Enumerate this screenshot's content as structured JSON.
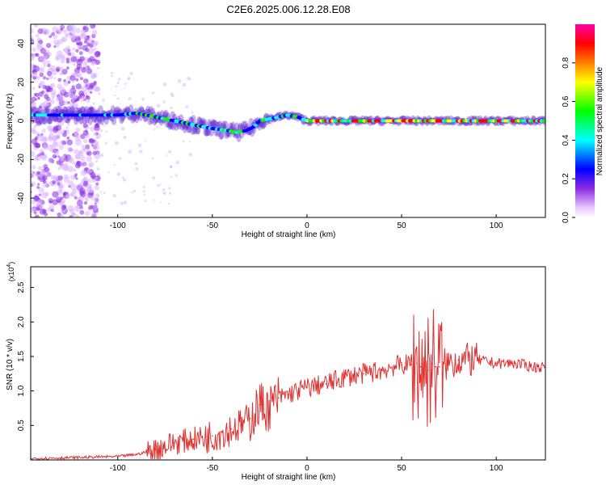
{
  "title": "C2E6.2025.006.12.28.E08",
  "colors": {
    "accent": "#e03030",
    "spectrum_stops": [
      "#ffffff",
      "#e8c8ff",
      "#8a2be2",
      "#0000ff",
      "#00ffff",
      "#00ff00",
      "#ffff00",
      "#ff8000",
      "#ff0000",
      "#ff00aa"
    ]
  },
  "chart_data": [
    {
      "type": "heatmap",
      "title": "",
      "xlabel": "Height of straight line (km)",
      "ylabel": "Frequency (Hz)",
      "xlim": [
        -146,
        126
      ],
      "ylim": [
        -50,
        50
      ],
      "xticks": [
        -100,
        -50,
        0,
        50,
        100
      ],
      "yticks": [
        -40,
        -20,
        0,
        20,
        40
      ],
      "xtick_labels": [
        "-100",
        "-50",
        "0",
        "50",
        "100"
      ],
      "ytick_labels": [
        "-40",
        "-20",
        "0",
        "20",
        "40"
      ],
      "grid": false,
      "track": {
        "x": [
          -146,
          -120,
          -100,
          -90,
          -80,
          -70,
          -60,
          -50,
          -42,
          -37,
          -32,
          -28,
          -25,
          -20,
          -15,
          -10,
          -5,
          0,
          5,
          20,
          40,
          60,
          80,
          100,
          126
        ],
        "y": [
          3,
          3,
          3,
          4,
          2,
          0,
          -2,
          -4,
          -5,
          -6,
          -5,
          -3,
          0,
          1,
          2,
          3,
          2,
          0,
          0,
          0,
          0,
          0,
          0,
          0,
          0
        ]
      },
      "colorbar": {
        "label": "Normalized spectral amplitude",
        "range": [
          0,
          1
        ],
        "ticks": [
          0.0,
          0.2,
          0.4,
          0.6,
          0.8
        ],
        "tick_labels": [
          "0.0",
          "0.2",
          "0.4",
          "0.6",
          "0.8"
        ]
      }
    },
    {
      "type": "line",
      "title": "",
      "xlabel": "Height of straight line (km)",
      "ylabel": "SNR (10 * v/v)",
      "y_multiplier": "(x10",
      "y_multiplier_exp": "4",
      "y_multiplier_close": ")",
      "xlim": [
        -146,
        126
      ],
      "ylim": [
        0,
        2.8
      ],
      "xticks": [
        -100,
        -50,
        0,
        50,
        100
      ],
      "yticks": [
        0.5,
        1.0,
        1.5,
        2.0,
        2.5
      ],
      "xtick_labels": [
        "-100",
        "-50",
        "0",
        "50",
        "100"
      ],
      "ytick_labels": [
        "0.5",
        "1.0",
        "1.5",
        "2.0",
        "2.5"
      ],
      "grid": false,
      "series": [
        {
          "name": "SNR",
          "color": "#e03030",
          "x": [
            -146,
            -130,
            -115,
            -100,
            -90,
            -80,
            -70,
            -60,
            -50,
            -40,
            -35,
            -30,
            -25,
            -20,
            -15,
            -10,
            0,
            10,
            20,
            30,
            40,
            45,
            50,
            55,
            58,
            60,
            62,
            64,
            66,
            68,
            70,
            75,
            80,
            90,
            100,
            110,
            120,
            126
          ],
          "y": [
            0.02,
            0.03,
            0.04,
            0.05,
            0.08,
            0.15,
            0.25,
            0.3,
            0.35,
            0.45,
            0.5,
            0.6,
            0.8,
            0.75,
            0.9,
            0.95,
            1.05,
            1.1,
            1.2,
            1.25,
            1.3,
            1.35,
            1.38,
            1.38,
            1.4,
            1.35,
            1.4,
            1.3,
            1.4,
            1.35,
            1.35,
            1.4,
            1.45,
            1.45,
            1.4,
            1.4,
            1.35,
            1.35
          ]
        }
      ],
      "annotations": []
    }
  ]
}
